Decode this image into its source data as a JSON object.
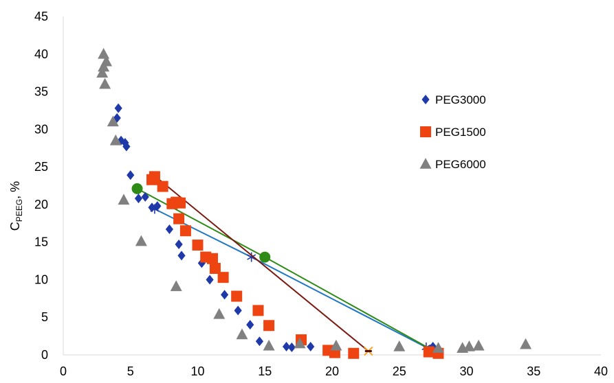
{
  "chart_data": {
    "type": "scatter",
    "xlim": [
      0,
      40
    ],
    "ylim": [
      0,
      45
    ],
    "x_ticks": [
      "0",
      "5",
      "10",
      "15",
      "20",
      "25",
      "30",
      "35",
      "40"
    ],
    "y_ticks": [
      "0",
      "5",
      "10",
      "15",
      "20",
      "25",
      "30",
      "35",
      "40",
      "45"
    ],
    "ylabel": {
      "main": "C",
      "sub": "PEEG",
      "suffix": ", %"
    },
    "grid": false,
    "legend_position": "right",
    "series": [
      {
        "name": "PEG3000",
        "marker": "diamond",
        "color": "#1f3aa8",
        "x": [
          4.0,
          4.1,
          4.3,
          4.6,
          4.7,
          5.0,
          5.6,
          6.1,
          6.6,
          7.0,
          7.9,
          8.6,
          8.8,
          10.3,
          10.9,
          12.0,
          13.0,
          13.9,
          14.6,
          16.6,
          17.0,
          18.4,
          27.5
        ],
        "y": [
          31.5,
          32.8,
          28.5,
          28.2,
          27.7,
          23.9,
          20.8,
          21.0,
          19.6,
          19.8,
          16.7,
          14.7,
          13.2,
          12.2,
          10.0,
          8.0,
          5.9,
          4.0,
          1.8,
          1.1,
          1.0,
          1.1,
          1.1
        ]
      },
      {
        "name": "PEG1500",
        "marker": "square",
        "color": "#ee4411",
        "x": [
          6.6,
          6.8,
          7.4,
          8.1,
          8.4,
          8.7,
          8.6,
          9.1,
          10.0,
          10.6,
          11.1,
          11.3,
          11.9,
          12.9,
          14.5,
          15.3,
          17.7,
          19.7,
          20.2,
          21.6,
          27.2,
          27.9
        ],
        "y": [
          23.3,
          23.7,
          22.4,
          20.1,
          20.3,
          20.2,
          18.1,
          16.5,
          14.6,
          13.0,
          12.8,
          11.5,
          10.3,
          7.8,
          5.9,
          3.9,
          2.0,
          0.6,
          0.3,
          0.2,
          0.4,
          0.2
        ]
      },
      {
        "name": "PEG6000",
        "marker": "triangle",
        "color": "#808080",
        "x": [
          2.9,
          3.0,
          3.0,
          3.1,
          3.2,
          3.7,
          3.9,
          4.5,
          5.8,
          8.4,
          11.6,
          13.3,
          15.3,
          17.6,
          20.3,
          25.0,
          27.9,
          29.7,
          30.2,
          30.9,
          34.4
        ],
        "y": [
          37.5,
          38.3,
          40.0,
          36.0,
          39.0,
          31.0,
          28.5,
          20.6,
          15.1,
          9.1,
          5.4,
          2.7,
          1.2,
          1.5,
          1.2,
          1.1,
          0.9,
          0.9,
          1.1,
          1.2,
          1.4
        ]
      }
    ],
    "tie_lines": [
      {
        "color": "#1f77c4",
        "points": [
          [
            6.8,
            19.4
          ],
          [
            14.0,
            13.0
          ],
          [
            27.0,
            1.0
          ]
        ],
        "marker": "asterisk"
      },
      {
        "color": "#2e8b16",
        "points": [
          [
            5.5,
            22.1
          ],
          [
            15.0,
            13.0
          ],
          [
            27.7,
            0.4
          ]
        ],
        "marker": "circle"
      },
      {
        "color": "#7a1a10",
        "points": [
          [
            6.8,
            23.8
          ],
          [
            22.7,
            0.5
          ]
        ],
        "marker": "cross"
      }
    ]
  }
}
